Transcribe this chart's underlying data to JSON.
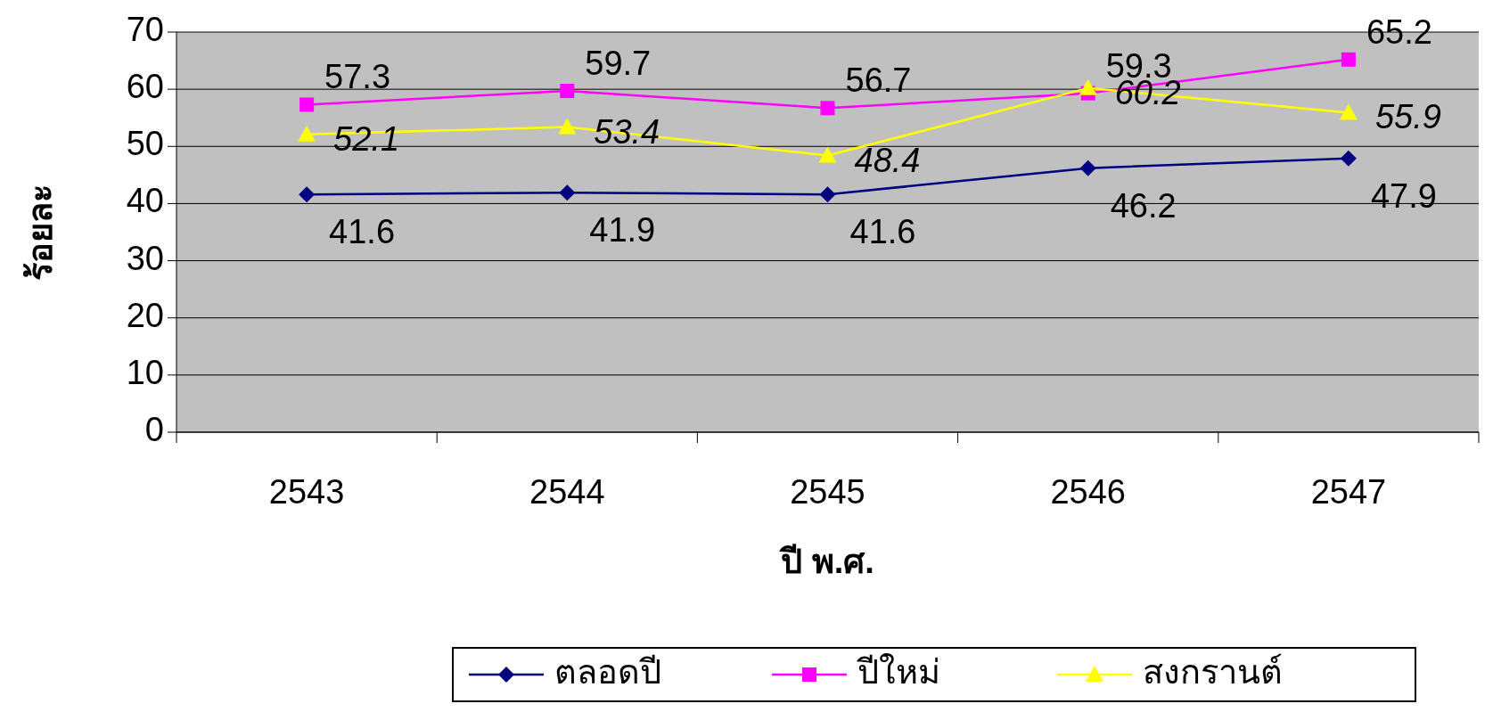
{
  "chart_data": {
    "type": "line",
    "xlabel": "ปี พ.ศ.",
    "ylabel": "ร้อยละ",
    "categories": [
      "2543",
      "2544",
      "2545",
      "2546",
      "2547"
    ],
    "series": [
      {
        "name": "ตลอดปี",
        "color": "#000080",
        "marker": "diamond",
        "values": [
          41.6,
          41.9,
          41.6,
          46.2,
          47.9
        ]
      },
      {
        "name": "ปีใหม่",
        "color": "#ff00ff",
        "marker": "square",
        "values": [
          57.3,
          59.7,
          56.7,
          59.3,
          65.2
        ]
      },
      {
        "name": "สงกรานต์",
        "color": "#ffff00",
        "marker": "triangle",
        "values": [
          52.1,
          53.4,
          48.4,
          60.2,
          55.9
        ]
      }
    ],
    "ylim": [
      0,
      70
    ],
    "yticks": [
      0,
      10,
      20,
      30,
      40,
      50,
      60,
      70
    ],
    "grid": "y",
    "data_labels": true,
    "legend": "bottom",
    "line_style": "solid"
  }
}
